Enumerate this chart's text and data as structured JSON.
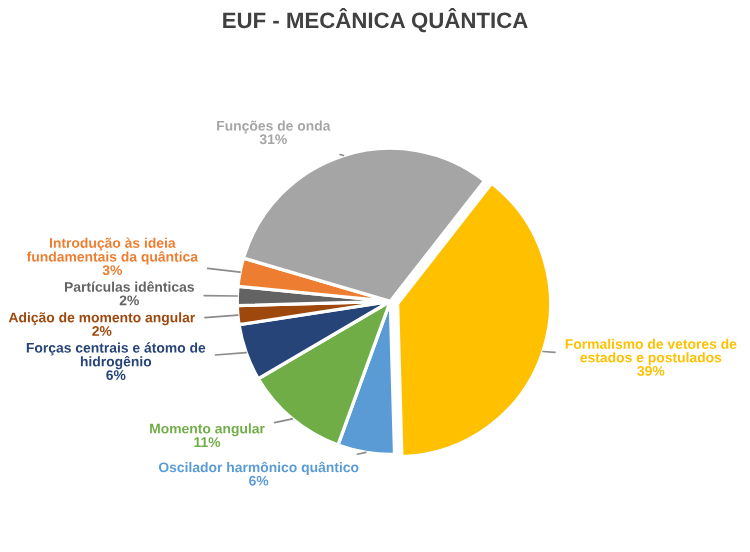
{
  "chart_data": {
    "type": "pie",
    "title": "EUF - MECÂNICA QUÂNTICA",
    "categories": [
      "Formalismo de vetores de\nestados e postulados",
      "Oscilador harmônico quântico",
      "Momento angular",
      "Forças centrais e átomo de\nhidrogênio",
      "Adição de momento angular",
      "Partículas idênticas",
      "Introdução às ideia\nfundamentais da quântica",
      "Funções de onda"
    ],
    "values": [
      39,
      6,
      11,
      6,
      2,
      2,
      3,
      31
    ],
    "colors": [
      "#ffc000",
      "#5b9bd5",
      "#70ad47",
      "#264478",
      "#9e480e",
      "#636363",
      "#ed7d31",
      "#a5a5a5"
    ],
    "value_labels": [
      "39%",
      "6%",
      "11%",
      "6%",
      "2%",
      "2%",
      "3%",
      "31%"
    ],
    "legend": false
  }
}
